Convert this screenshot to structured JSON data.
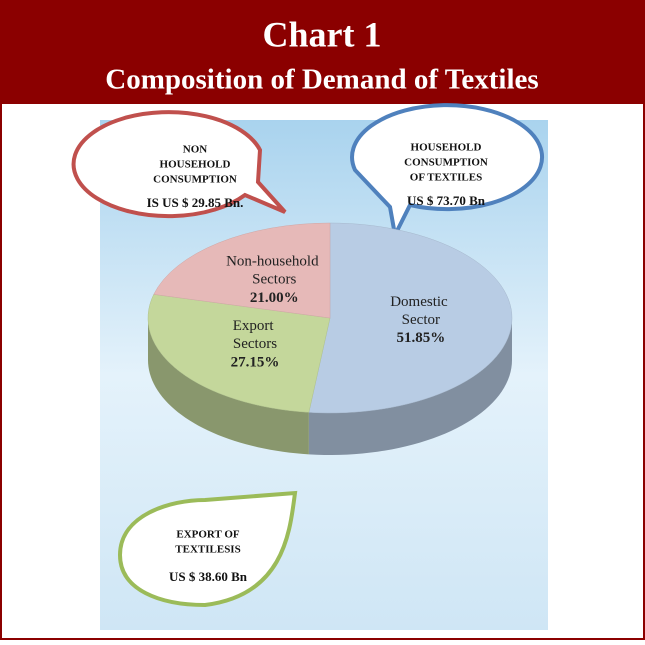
{
  "chart_data": {
    "type": "pie",
    "title": "Chart 1",
    "subtitle": "Composition of Demand of Textiles",
    "categories": [
      "Domestic Sector",
      "Export Sectors",
      "Non-household Sectors"
    ],
    "values": [
      51.85,
      27.15,
      21.0
    ],
    "value_labels": [
      "51.85%",
      "27.15%",
      "21.00%"
    ],
    "colors": [
      "#b8cce4",
      "#c4d79b",
      "#e6b9b8"
    ],
    "annotations": [
      {
        "lines": [
          "NON",
          "HOUSEHOLD",
          "CONSUMPTION",
          "IS US $ 29.85 Bn."
        ],
        "color": "#c0504d"
      },
      {
        "lines": [
          "HOUSEHOLD",
          "CONSUMPTION",
          "OF TEXTILES",
          "US $ 73.70 Bn"
        ],
        "color": "#4f81bd"
      },
      {
        "lines": [
          "EXPORT OF",
          "TEXTILESIS",
          "US $ 38.60 Bn"
        ],
        "color": "#9bbb59"
      }
    ]
  }
}
